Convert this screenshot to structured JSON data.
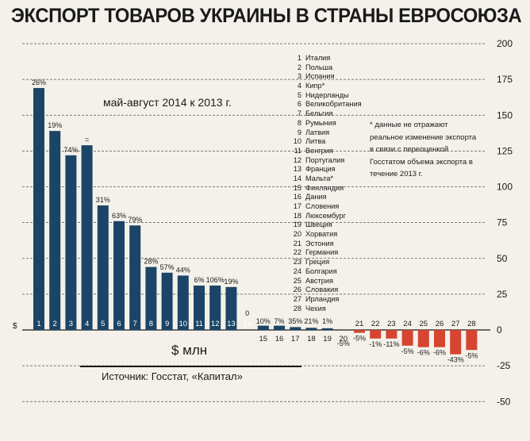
{
  "title": "ЭКСПОРТ ТОВАРОВ УКРАИНЫ В СТРАНЫ ЕВРОСОЮЗА",
  "subtitle": "май-август 2014 к 2013 г.",
  "unit_label": "$ млн",
  "left_axis_symbol": "$",
  "source": "Источник: Госстат, «Капитал»",
  "footnote": "* данные не отражают реальное изменение экспорта в связи с переоценкой Госстатом объема экспорта в течение 2013 г.",
  "countries": [
    {
      "num": "1",
      "name": "Италия"
    },
    {
      "num": "2",
      "name": "Польша"
    },
    {
      "num": "3",
      "name": "Испания"
    },
    {
      "num": "4",
      "name": "Кипр*"
    },
    {
      "num": "5",
      "name": "Нидерланды"
    },
    {
      "num": "6",
      "name": "Великобритания"
    },
    {
      "num": "7",
      "name": "Бельгия"
    },
    {
      "num": "8",
      "name": "Румыния"
    },
    {
      "num": "9",
      "name": "Латвия"
    },
    {
      "num": "10",
      "name": "Литва"
    },
    {
      "num": "11",
      "name": "Венгрия"
    },
    {
      "num": "12",
      "name": "Португалия"
    },
    {
      "num": "13",
      "name": "Франция"
    },
    {
      "num": "14",
      "name": "Мальта*"
    },
    {
      "num": "15",
      "name": "Финляндия"
    },
    {
      "num": "16",
      "name": "Дания"
    },
    {
      "num": "17",
      "name": "Словения"
    },
    {
      "num": "18",
      "name": "Люксембург"
    },
    {
      "num": "19",
      "name": "Швеция"
    },
    {
      "num": "20",
      "name": "Хорватия"
    },
    {
      "num": "21",
      "name": "Эстония"
    },
    {
      "num": "22",
      "name": "Германия"
    },
    {
      "num": "23",
      "name": "Греция"
    },
    {
      "num": "24",
      "name": "Болгария"
    },
    {
      "num": "25",
      "name": "Австрия"
    },
    {
      "num": "26",
      "name": "Словакия"
    },
    {
      "num": "27",
      "name": "Ирландия"
    },
    {
      "num": "28",
      "name": "Чехия"
    }
  ],
  "colors": {
    "positive": "#1b4566",
    "negative": "#d5452f",
    "background": "#f4f1ea",
    "text": "#1a1a1a"
  },
  "chart_data": {
    "type": "bar",
    "categories": [
      "1",
      "2",
      "3",
      "4",
      "5",
      "6",
      "7",
      "8",
      "9",
      "10",
      "11",
      "12",
      "13",
      "14",
      "15",
      "16",
      "17",
      "18",
      "19",
      "20",
      "21",
      "22",
      "23",
      "24",
      "25",
      "26",
      "27",
      "28"
    ],
    "values": [
      169,
      139,
      122,
      129,
      87,
      76,
      73,
      44,
      40,
      38,
      31,
      31,
      30,
      0,
      3,
      3,
      2,
      1.5,
      1.2,
      0,
      -2,
      -6,
      -6,
      -11,
      -12,
      -12,
      -17,
      -14
    ],
    "labels": [
      "26%",
      "19%",
      "74%",
      "=",
      "31%",
      "63%",
      "79%",
      "28%",
      "57%",
      "44%",
      "6%",
      "106%",
      "19%",
      "0",
      "10%",
      "7%",
      "35%",
      "21%",
      "1%",
      "-5%",
      "-5%",
      "-1%",
      "-11%",
      "-5%",
      "-6%",
      "-6%",
      "-43%",
      "-5%"
    ],
    "yticks": [
      "200",
      "175",
      "150",
      "125",
      "100",
      "75",
      "50",
      "25",
      "0",
      "-25",
      "-50"
    ],
    "ylim": [
      -50,
      200
    ],
    "xlabel": "$ млн",
    "ylabel": "",
    "grid": true,
    "axis_position": "right"
  }
}
